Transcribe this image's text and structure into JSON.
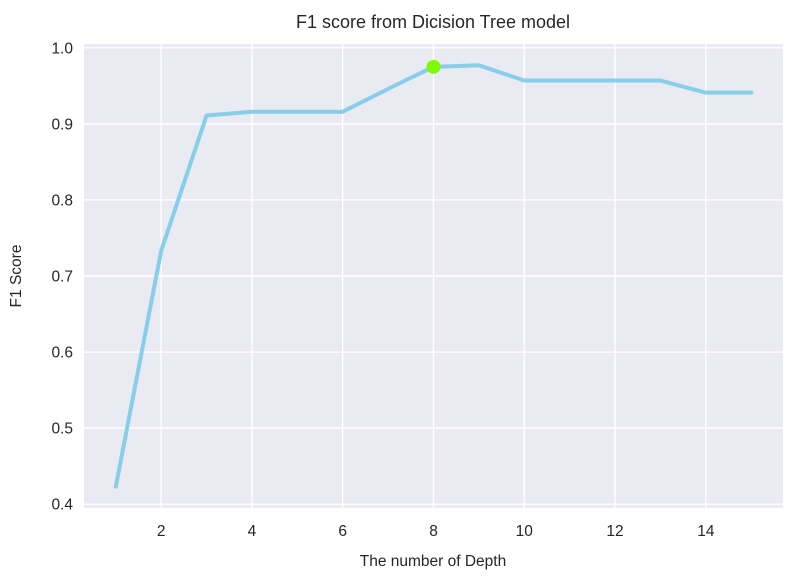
{
  "chart_data": {
    "type": "line",
    "title": "F1 score from Dicision Tree model",
    "xlabel": "The number of Depth",
    "ylabel": "F1 Score",
    "x": [
      1,
      2,
      3,
      4,
      5,
      6,
      7,
      8,
      9,
      10,
      11,
      12,
      13,
      14,
      15
    ],
    "series": [
      {
        "name": "F1 score",
        "values": [
          0.423,
          0.733,
          0.911,
          0.916,
          0.916,
          0.916,
          0.946,
          0.975,
          0.977,
          0.957,
          0.957,
          0.957,
          0.957,
          0.941,
          0.941
        ],
        "color": "#87CEEB"
      }
    ],
    "highlight_point": {
      "x": 8,
      "y": 0.975,
      "color": "#7CFC00"
    },
    "xticks": [
      "2",
      "4",
      "6",
      "8",
      "10",
      "12",
      "14"
    ],
    "yticks": [
      "0.4",
      "0.5",
      "0.6",
      "0.7",
      "0.8",
      "0.9",
      "1.0"
    ],
    "xlim": [
      0.3,
      15.7
    ],
    "ylim": [
      0.395,
      1.005
    ],
    "grid": true,
    "legend": "none",
    "colors": {
      "plot_background": "#EAEAF2",
      "grid_line": "#FFFFFF",
      "text": "#262626"
    }
  }
}
